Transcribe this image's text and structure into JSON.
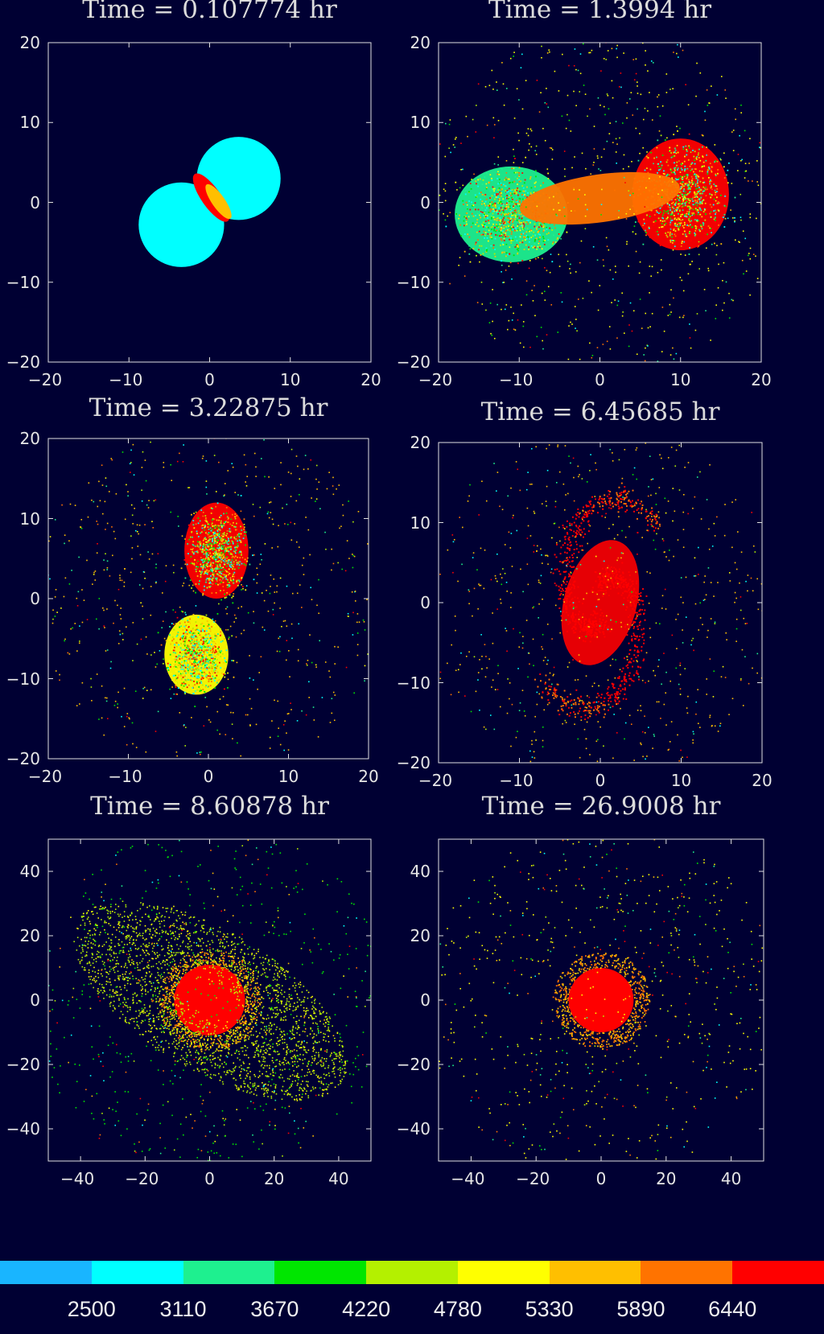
{
  "chart_data": [
    {
      "type": "scatter",
      "title": "Time = 0.107774 hr",
      "xlim": [
        -20,
        20
      ],
      "ylim": [
        -20,
        20
      ],
      "xticks": [
        -20,
        -10,
        0,
        10,
        20
      ],
      "yticks": [
        -20,
        -10,
        0,
        10,
        20
      ],
      "xtick_labels": [
        "−20",
        "−10",
        "0",
        "10",
        "20"
      ],
      "ytick_labels": [
        "−20",
        "−10",
        "0",
        "10",
        "20"
      ],
      "structures": [
        {
          "kind": "disk",
          "center": [
            -3.5,
            -2.8
          ],
          "radius": 5.3,
          "value": 2500
        },
        {
          "kind": "disk",
          "center": [
            3.6,
            3.0
          ],
          "radius": 5.2,
          "value": 2500
        },
        {
          "kind": "contact",
          "center": [
            0.2,
            0.6
          ],
          "value": 6440
        }
      ]
    },
    {
      "type": "scatter",
      "title": "Time = 1.3994 hr",
      "xlim": [
        -20,
        20
      ],
      "ylim": [
        -20,
        20
      ],
      "xticks": [
        -20,
        -10,
        0,
        10,
        20
      ],
      "yticks": [
        -20,
        -10,
        0,
        10,
        20
      ],
      "xtick_labels": [
        "−20",
        "−10",
        "0",
        "10",
        "20"
      ],
      "ytick_labels": [
        "−20",
        "−10",
        "0",
        "10",
        "20"
      ],
      "structures": [
        {
          "kind": "blob",
          "center": [
            -11,
            -1.5
          ],
          "size": [
            7,
            6
          ],
          "value": 3110
        },
        {
          "kind": "blob",
          "center": [
            10,
            1
          ],
          "size": [
            6,
            7
          ],
          "value": 6440
        },
        {
          "kind": "bridge",
          "center": [
            0,
            0.5
          ],
          "size": [
            10,
            3
          ],
          "value": 5890
        },
        {
          "kind": "halo",
          "center": [
            0,
            0
          ],
          "radius": 20,
          "value": 4780
        }
      ]
    },
    {
      "type": "scatter",
      "title": "Time = 3.22875 hr",
      "xlim": [
        -20,
        20
      ],
      "ylim": [
        -20,
        20
      ],
      "xticks": [
        -20,
        -10,
        0,
        10,
        20
      ],
      "yticks": [
        -20,
        -10,
        0,
        10,
        20
      ],
      "xtick_labels": [
        "−20",
        "−10",
        "0",
        "10",
        "20"
      ],
      "ytick_labels": [
        "−20",
        "−10",
        "0",
        "10",
        "20"
      ],
      "structures": [
        {
          "kind": "blob",
          "center": [
            1,
            6
          ],
          "size": [
            4,
            6
          ],
          "value": 6440
        },
        {
          "kind": "blob",
          "center": [
            -1.5,
            -7
          ],
          "size": [
            4,
            5
          ],
          "value": 4780
        },
        {
          "kind": "halo",
          "center": [
            0,
            0
          ],
          "radius": 20,
          "value": 5330
        }
      ]
    },
    {
      "type": "scatter",
      "title": "Time = 6.45685 hr",
      "xlim": [
        -20,
        20
      ],
      "ylim": [
        -20,
        20
      ],
      "xticks": [
        -20,
        -10,
        0,
        10,
        20
      ],
      "yticks": [
        -20,
        -10,
        0,
        10,
        20
      ],
      "xtick_labels": [
        "−20",
        "−10",
        "0",
        "10",
        "20"
      ],
      "ytick_labels": [
        "−20",
        "−10",
        "0",
        "10",
        "20"
      ],
      "structures": [
        {
          "kind": "spiral",
          "center": [
            0,
            0
          ],
          "value": 6440
        },
        {
          "kind": "halo",
          "center": [
            0,
            0
          ],
          "radius": 20,
          "value": 5330
        }
      ]
    },
    {
      "type": "scatter",
      "title": "Time = 8.60878 hr",
      "xlim": [
        -50,
        50
      ],
      "ylim": [
        -50,
        50
      ],
      "xticks": [
        -40,
        -20,
        0,
        20,
        40
      ],
      "yticks": [
        -40,
        -20,
        0,
        20,
        40
      ],
      "xtick_labels": [
        "−40",
        "−20",
        "0",
        "20",
        "40"
      ],
      "ytick_labels": [
        "−40",
        "−20",
        "0",
        "20",
        "40"
      ],
      "structures": [
        {
          "kind": "core",
          "center": [
            0,
            0
          ],
          "radius": 11,
          "value": 6440
        },
        {
          "kind": "tilted-disk",
          "center": [
            0,
            0
          ],
          "radius": 38,
          "value": 4220
        },
        {
          "kind": "halo",
          "center": [
            0,
            0
          ],
          "radius": 50,
          "value": 3670
        }
      ]
    },
    {
      "type": "scatter",
      "title": "Time = 26.9008 hr",
      "xlim": [
        -50,
        50
      ],
      "ylim": [
        -50,
        50
      ],
      "xticks": [
        -40,
        -20,
        0,
        20,
        40
      ],
      "yticks": [
        -40,
        -20,
        0,
        20,
        40
      ],
      "xtick_labels": [
        "−40",
        "−20",
        "0",
        "20",
        "40"
      ],
      "ytick_labels": [
        "−40",
        "−20",
        "0",
        "20",
        "40"
      ],
      "structures": [
        {
          "kind": "core",
          "center": [
            0,
            0
          ],
          "radius": 10,
          "value": 6440
        },
        {
          "kind": "halo",
          "center": [
            0,
            0
          ],
          "radius": 50,
          "value": 4780
        }
      ]
    }
  ],
  "colorbar": {
    "labels": [
      "2500",
      "3110",
      "3670",
      "4220",
      "4780",
      "5330",
      "5890",
      "6440"
    ],
    "colors": [
      "#19b5ff",
      "#00ffff",
      "#1ef08f",
      "#00e600",
      "#b4f000",
      "#ffff00",
      "#ffbf00",
      "#ff7300",
      "#ff0000"
    ]
  },
  "colors": {
    "background": "#000033",
    "axis": "#e0e0e0"
  }
}
